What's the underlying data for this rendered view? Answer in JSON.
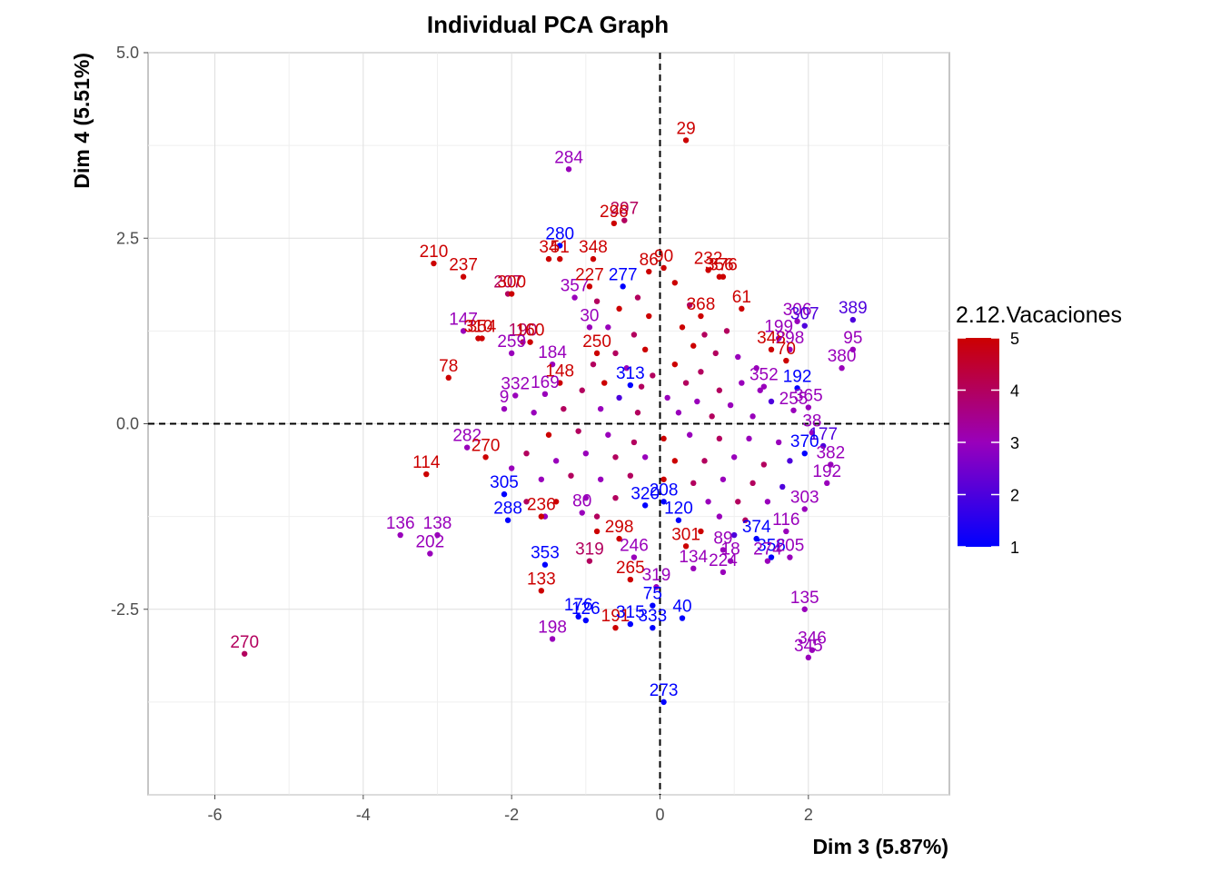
{
  "chart_data": {
    "type": "scatter",
    "title": "Individual PCA Graph",
    "xlabel": "Dim 3 (5.87%)",
    "ylabel": "Dim 4 (5.51%)",
    "xlim": [
      -6.9,
      3.9
    ],
    "ylim": [
      -5.0,
      5.0
    ],
    "xticks": [
      -6,
      -4,
      -2,
      0,
      2
    ],
    "yticks": [
      -2.5,
      0.0,
      2.5,
      5.0
    ],
    "xtick_labels": [
      "-6",
      "-4",
      "-2",
      "0",
      "2"
    ],
    "ytick_labels": [
      "-2.5",
      "0.0",
      "2.5",
      "5.0"
    ],
    "grid": true,
    "reference_lines": {
      "x": 0,
      "y": 0,
      "style": "dashed"
    },
    "color_legend": {
      "title": "2.12.Vacaciones",
      "min": 1,
      "max": 5,
      "ticks": [
        "1",
        "2",
        "3",
        "4",
        "5"
      ],
      "low_color": "#0000ff",
      "high_color": "#cc0000",
      "placement": "right"
    },
    "points": [
      {
        "label": "29",
        "x": 0.35,
        "y": 3.82,
        "v": 5
      },
      {
        "label": "284",
        "x": -1.23,
        "y": 3.43,
        "v": 3
      },
      {
        "label": "297",
        "x": -0.48,
        "y": 2.74,
        "v": 4
      },
      {
        "label": "296",
        "x": -0.62,
        "y": 2.7,
        "v": 5
      },
      {
        "label": "280",
        "x": -1.35,
        "y": 2.4,
        "v": 1
      },
      {
        "label": "34",
        "x": -1.5,
        "y": 2.22,
        "v": 5
      },
      {
        "label": "51",
        "x": -1.35,
        "y": 2.22,
        "v": 5
      },
      {
        "label": "348",
        "x": -0.9,
        "y": 2.22,
        "v": 5
      },
      {
        "label": "210",
        "x": -3.05,
        "y": 2.16,
        "v": 5
      },
      {
        "label": "237",
        "x": -2.65,
        "y": 1.98,
        "v": 5
      },
      {
        "label": "90",
        "x": 0.05,
        "y": 2.1,
        "v": 5
      },
      {
        "label": "86",
        "x": -0.15,
        "y": 2.05,
        "v": 5
      },
      {
        "label": "232",
        "x": 0.65,
        "y": 2.07,
        "v": 5
      },
      {
        "label": "376",
        "x": 0.85,
        "y": 1.98,
        "v": 5
      },
      {
        "label": "356",
        "x": 0.8,
        "y": 1.98,
        "v": 5
      },
      {
        "label": "207",
        "x": -2.05,
        "y": 1.75,
        "v": 4
      },
      {
        "label": "300",
        "x": -2.0,
        "y": 1.75,
        "v": 5
      },
      {
        "label": "357",
        "x": -1.15,
        "y": 1.7,
        "v": 3
      },
      {
        "label": "227",
        "x": -0.95,
        "y": 1.85,
        "v": 5
      },
      {
        "label": "277",
        "x": -0.5,
        "y": 1.85,
        "v": 1
      },
      {
        "label": "61",
        "x": 1.1,
        "y": 1.55,
        "v": 5
      },
      {
        "label": "368",
        "x": 0.55,
        "y": 1.45,
        "v": 5
      },
      {
        "label": "147",
        "x": -2.65,
        "y": 1.25,
        "v": 3
      },
      {
        "label": "306",
        "x": 1.85,
        "y": 1.38,
        "v": 3
      },
      {
        "label": "307",
        "x": 1.95,
        "y": 1.32,
        "v": 2
      },
      {
        "label": "389",
        "x": 2.6,
        "y": 1.4,
        "v": 2
      },
      {
        "label": "30",
        "x": -0.95,
        "y": 1.3,
        "v": 3
      },
      {
        "label": "310",
        "x": -2.45,
        "y": 1.15,
        "v": 5
      },
      {
        "label": "354",
        "x": -2.4,
        "y": 1.15,
        "v": 5
      },
      {
        "label": "190",
        "x": -1.85,
        "y": 1.1,
        "v": 4
      },
      {
        "label": "160",
        "x": -1.75,
        "y": 1.1,
        "v": 5
      },
      {
        "label": "199",
        "x": 1.6,
        "y": 1.15,
        "v": 3
      },
      {
        "label": "348",
        "x": 1.5,
        "y": 1.0,
        "v": 5
      },
      {
        "label": "298",
        "x": 1.75,
        "y": 1.0,
        "v": 3
      },
      {
        "label": "95",
        "x": 2.6,
        "y": 1.0,
        "v": 3
      },
      {
        "label": "259",
        "x": -2.0,
        "y": 0.95,
        "v": 3
      },
      {
        "label": "250",
        "x": -0.85,
        "y": 0.95,
        "v": 5
      },
      {
        "label": "70",
        "x": 1.7,
        "y": 0.85,
        "v": 5
      },
      {
        "label": "184",
        "x": -1.45,
        "y": 0.8,
        "v": 3
      },
      {
        "label": "380",
        "x": 2.45,
        "y": 0.75,
        "v": 3
      },
      {
        "label": "78",
        "x": -2.85,
        "y": 0.62,
        "v": 5
      },
      {
        "label": "148",
        "x": -1.35,
        "y": 0.55,
        "v": 5
      },
      {
        "label": "313",
        "x": -0.4,
        "y": 0.52,
        "v": 1
      },
      {
        "label": "352",
        "x": 1.4,
        "y": 0.5,
        "v": 3
      },
      {
        "label": "192",
        "x": 1.85,
        "y": 0.48,
        "v": 1
      },
      {
        "label": "332",
        "x": -1.95,
        "y": 0.38,
        "v": 3
      },
      {
        "label": "169",
        "x": -1.55,
        "y": 0.4,
        "v": 3
      },
      {
        "label": "9",
        "x": -2.1,
        "y": 0.2,
        "v": 3
      },
      {
        "label": "365",
        "x": 2.0,
        "y": 0.22,
        "v": 3
      },
      {
        "label": "255",
        "x": 1.8,
        "y": 0.18,
        "v": 3
      },
      {
        "label": "38",
        "x": 2.05,
        "y": -0.12,
        "v": 3
      },
      {
        "label": "177",
        "x": 2.2,
        "y": -0.3,
        "v": 2
      },
      {
        "label": "370",
        "x": 1.95,
        "y": -0.4,
        "v": 1
      },
      {
        "label": "282",
        "x": -2.6,
        "y": -0.32,
        "v": 3
      },
      {
        "label": "270",
        "x": -2.35,
        "y": -0.45,
        "v": 5
      },
      {
        "label": "382",
        "x": 2.3,
        "y": -0.55,
        "v": 3
      },
      {
        "label": "114",
        "x": -3.15,
        "y": -0.68,
        "v": 5
      },
      {
        "label": "192",
        "x": 2.25,
        "y": -0.8,
        "v": 3
      },
      {
        "label": "305",
        "x": -2.1,
        "y": -0.95,
        "v": 1
      },
      {
        "label": "208",
        "x": 0.05,
        "y": -1.05,
        "v": 1
      },
      {
        "label": "320",
        "x": -0.2,
        "y": -1.1,
        "v": 1
      },
      {
        "label": "288",
        "x": -2.05,
        "y": -1.3,
        "v": 1
      },
      {
        "label": "236",
        "x": -1.6,
        "y": -1.25,
        "v": 5
      },
      {
        "label": "80",
        "x": -1.05,
        "y": -1.2,
        "v": 3
      },
      {
        "label": "303",
        "x": 1.95,
        "y": -1.15,
        "v": 3
      },
      {
        "label": "120",
        "x": 0.25,
        "y": -1.3,
        "v": 1
      },
      {
        "label": "116",
        "x": 1.7,
        "y": -1.45,
        "v": 3
      },
      {
        "label": "374",
        "x": 1.3,
        "y": -1.55,
        "v": 1
      },
      {
        "label": "136",
        "x": -3.5,
        "y": -1.5,
        "v": 3
      },
      {
        "label": "138",
        "x": -3.0,
        "y": -1.5,
        "v": 3
      },
      {
        "label": "202",
        "x": -3.1,
        "y": -1.75,
        "v": 3
      },
      {
        "label": "298",
        "x": -0.55,
        "y": -1.55,
        "v": 5
      },
      {
        "label": "301",
        "x": 0.35,
        "y": -1.65,
        "v": 5
      },
      {
        "label": "89",
        "x": 0.85,
        "y": -1.7,
        "v": 3
      },
      {
        "label": "356",
        "x": 1.5,
        "y": -1.8,
        "v": 1
      },
      {
        "label": "205",
        "x": 1.75,
        "y": -1.8,
        "v": 3
      },
      {
        "label": "274",
        "x": 1.45,
        "y": -1.85,
        "v": 3
      },
      {
        "label": "18",
        "x": 0.95,
        "y": -1.85,
        "v": 3
      },
      {
        "label": "134",
        "x": 0.45,
        "y": -1.95,
        "v": 3
      },
      {
        "label": "224",
        "x": 0.85,
        "y": -2.0,
        "v": 3
      },
      {
        "label": "353",
        "x": -1.55,
        "y": -1.9,
        "v": 1
      },
      {
        "label": "319",
        "x": -0.95,
        "y": -1.85,
        "v": 4
      },
      {
        "label": "246",
        "x": -0.35,
        "y": -1.8,
        "v": 3
      },
      {
        "label": "265",
        "x": -0.4,
        "y": -2.1,
        "v": 5
      },
      {
        "label": "319",
        "x": -0.05,
        "y": -2.2,
        "v": 3
      },
      {
        "label": "133",
        "x": -1.6,
        "y": -2.25,
        "v": 5
      },
      {
        "label": "75",
        "x": -0.1,
        "y": -2.45,
        "v": 1
      },
      {
        "label": "135",
        "x": 1.95,
        "y": -2.5,
        "v": 3
      },
      {
        "label": "40",
        "x": 0.3,
        "y": -2.62,
        "v": 1
      },
      {
        "label": "176",
        "x": -1.1,
        "y": -2.6,
        "v": 1
      },
      {
        "label": "126",
        "x": -1.0,
        "y": -2.65,
        "v": 1
      },
      {
        "label": "191",
        "x": -0.6,
        "y": -2.75,
        "v": 5
      },
      {
        "label": "315",
        "x": -0.4,
        "y": -2.7,
        "v": 1
      },
      {
        "label": "333",
        "x": -0.1,
        "y": -2.75,
        "v": 1
      },
      {
        "label": "198",
        "x": -1.45,
        "y": -2.9,
        "v": 3
      },
      {
        "label": "346",
        "x": 2.05,
        "y": -3.05,
        "v": 3
      },
      {
        "label": "345",
        "x": 2.0,
        "y": -3.15,
        "v": 3
      },
      {
        "label": "270",
        "x": -5.6,
        "y": -3.1,
        "v": 4
      },
      {
        "label": "273",
        "x": 0.05,
        "y": -3.75,
        "v": 1
      }
    ],
    "cluster_points": [
      {
        "x": -0.3,
        "y": 1.7,
        "v": 4
      },
      {
        "x": -0.55,
        "y": 1.55,
        "v": 5
      },
      {
        "x": -0.15,
        "y": 1.45,
        "v": 5
      },
      {
        "x": -0.7,
        "y": 1.3,
        "v": 3
      },
      {
        "x": -0.35,
        "y": 1.2,
        "v": 4
      },
      {
        "x": 0.3,
        "y": 1.3,
        "v": 5
      },
      {
        "x": 0.6,
        "y": 1.2,
        "v": 4
      },
      {
        "x": 0.9,
        "y": 1.25,
        "v": 4
      },
      {
        "x": 0.45,
        "y": 1.05,
        "v": 5
      },
      {
        "x": 0.75,
        "y": 0.95,
        "v": 4
      },
      {
        "x": 1.05,
        "y": 0.9,
        "v": 3
      },
      {
        "x": -0.2,
        "y": 1.0,
        "v": 5
      },
      {
        "x": -0.6,
        "y": 0.95,
        "v": 4
      },
      {
        "x": -0.9,
        "y": 0.8,
        "v": 4
      },
      {
        "x": -0.45,
        "y": 0.75,
        "v": 3
      },
      {
        "x": 0.2,
        "y": 0.8,
        "v": 5
      },
      {
        "x": 0.55,
        "y": 0.7,
        "v": 4
      },
      {
        "x": 1.3,
        "y": 0.75,
        "v": 3
      },
      {
        "x": 1.1,
        "y": 0.55,
        "v": 3
      },
      {
        "x": 0.8,
        "y": 0.45,
        "v": 4
      },
      {
        "x": 0.35,
        "y": 0.55,
        "v": 4
      },
      {
        "x": -0.25,
        "y": 0.5,
        "v": 4
      },
      {
        "x": -0.75,
        "y": 0.55,
        "v": 5
      },
      {
        "x": -1.05,
        "y": 0.45,
        "v": 4
      },
      {
        "x": -0.55,
        "y": 0.35,
        "v": 2
      },
      {
        "x": 0.1,
        "y": 0.35,
        "v": 3
      },
      {
        "x": 0.5,
        "y": 0.3,
        "v": 3
      },
      {
        "x": 0.95,
        "y": 0.25,
        "v": 3
      },
      {
        "x": 1.5,
        "y": 0.3,
        "v": 2
      },
      {
        "x": 1.25,
        "y": 0.1,
        "v": 3
      },
      {
        "x": 0.7,
        "y": 0.1,
        "v": 4
      },
      {
        "x": 0.25,
        "y": 0.15,
        "v": 3
      },
      {
        "x": -0.3,
        "y": 0.15,
        "v": 4
      },
      {
        "x": -0.8,
        "y": 0.2,
        "v": 3
      },
      {
        "x": -1.3,
        "y": 0.2,
        "v": 4
      },
      {
        "x": -1.7,
        "y": 0.15,
        "v": 3
      },
      {
        "x": -1.5,
        "y": -0.15,
        "v": 5
      },
      {
        "x": -1.1,
        "y": -0.1,
        "v": 4
      },
      {
        "x": -0.7,
        "y": -0.15,
        "v": 3
      },
      {
        "x": -0.35,
        "y": -0.25,
        "v": 4
      },
      {
        "x": 0.05,
        "y": -0.2,
        "v": 5
      },
      {
        "x": 0.4,
        "y": -0.15,
        "v": 3
      },
      {
        "x": 0.8,
        "y": -0.2,
        "v": 4
      },
      {
        "x": 1.2,
        "y": -0.2,
        "v": 3
      },
      {
        "x": 1.6,
        "y": -0.25,
        "v": 3
      },
      {
        "x": 1.75,
        "y": -0.5,
        "v": 2
      },
      {
        "x": 1.4,
        "y": -0.55,
        "v": 4
      },
      {
        "x": 1.0,
        "y": -0.45,
        "v": 3
      },
      {
        "x": 0.6,
        "y": -0.5,
        "v": 4
      },
      {
        "x": 0.2,
        "y": -0.5,
        "v": 5
      },
      {
        "x": -0.2,
        "y": -0.45,
        "v": 3
      },
      {
        "x": -0.6,
        "y": -0.45,
        "v": 4
      },
      {
        "x": -1.0,
        "y": -0.4,
        "v": 3
      },
      {
        "x": -1.4,
        "y": -0.5,
        "v": 3
      },
      {
        "x": -1.8,
        "y": -0.4,
        "v": 4
      },
      {
        "x": -2.0,
        "y": -0.6,
        "v": 3
      },
      {
        "x": -1.6,
        "y": -0.75,
        "v": 3
      },
      {
        "x": -1.2,
        "y": -0.7,
        "v": 4
      },
      {
        "x": -0.8,
        "y": -0.75,
        "v": 3
      },
      {
        "x": -0.4,
        "y": -0.7,
        "v": 4
      },
      {
        "x": 0.05,
        "y": -0.75,
        "v": 5
      },
      {
        "x": 0.45,
        "y": -0.8,
        "v": 4
      },
      {
        "x": 0.85,
        "y": -0.75,
        "v": 3
      },
      {
        "x": 1.25,
        "y": -0.8,
        "v": 4
      },
      {
        "x": 1.65,
        "y": -0.85,
        "v": 2
      },
      {
        "x": 1.45,
        "y": -1.05,
        "v": 3
      },
      {
        "x": 1.05,
        "y": -1.05,
        "v": 4
      },
      {
        "x": 0.65,
        "y": -1.05,
        "v": 3
      },
      {
        "x": -0.6,
        "y": -1.0,
        "v": 4
      },
      {
        "x": -1.0,
        "y": -1.0,
        "v": 3
      },
      {
        "x": -1.4,
        "y": -1.05,
        "v": 5
      },
      {
        "x": -1.8,
        "y": -1.05,
        "v": 4
      },
      {
        "x": -1.55,
        "y": -1.25,
        "v": 3
      },
      {
        "x": -0.85,
        "y": -1.25,
        "v": 4
      },
      {
        "x": 0.8,
        "y": -1.25,
        "v": 3
      },
      {
        "x": 1.15,
        "y": -1.3,
        "v": 4
      },
      {
        "x": 1.0,
        "y": -1.5,
        "v": 2
      },
      {
        "x": 0.55,
        "y": -1.45,
        "v": 5
      },
      {
        "x": -0.85,
        "y": -1.45,
        "v": 5
      },
      {
        "x": 0.2,
        "y": 1.9,
        "v": 5
      },
      {
        "x": -0.85,
        "y": 1.65,
        "v": 4
      },
      {
        "x": 0.4,
        "y": 1.6,
        "v": 4
      },
      {
        "x": 1.35,
        "y": 0.45,
        "v": 3
      },
      {
        "x": -0.1,
        "y": 0.65,
        "v": 4
      }
    ]
  }
}
